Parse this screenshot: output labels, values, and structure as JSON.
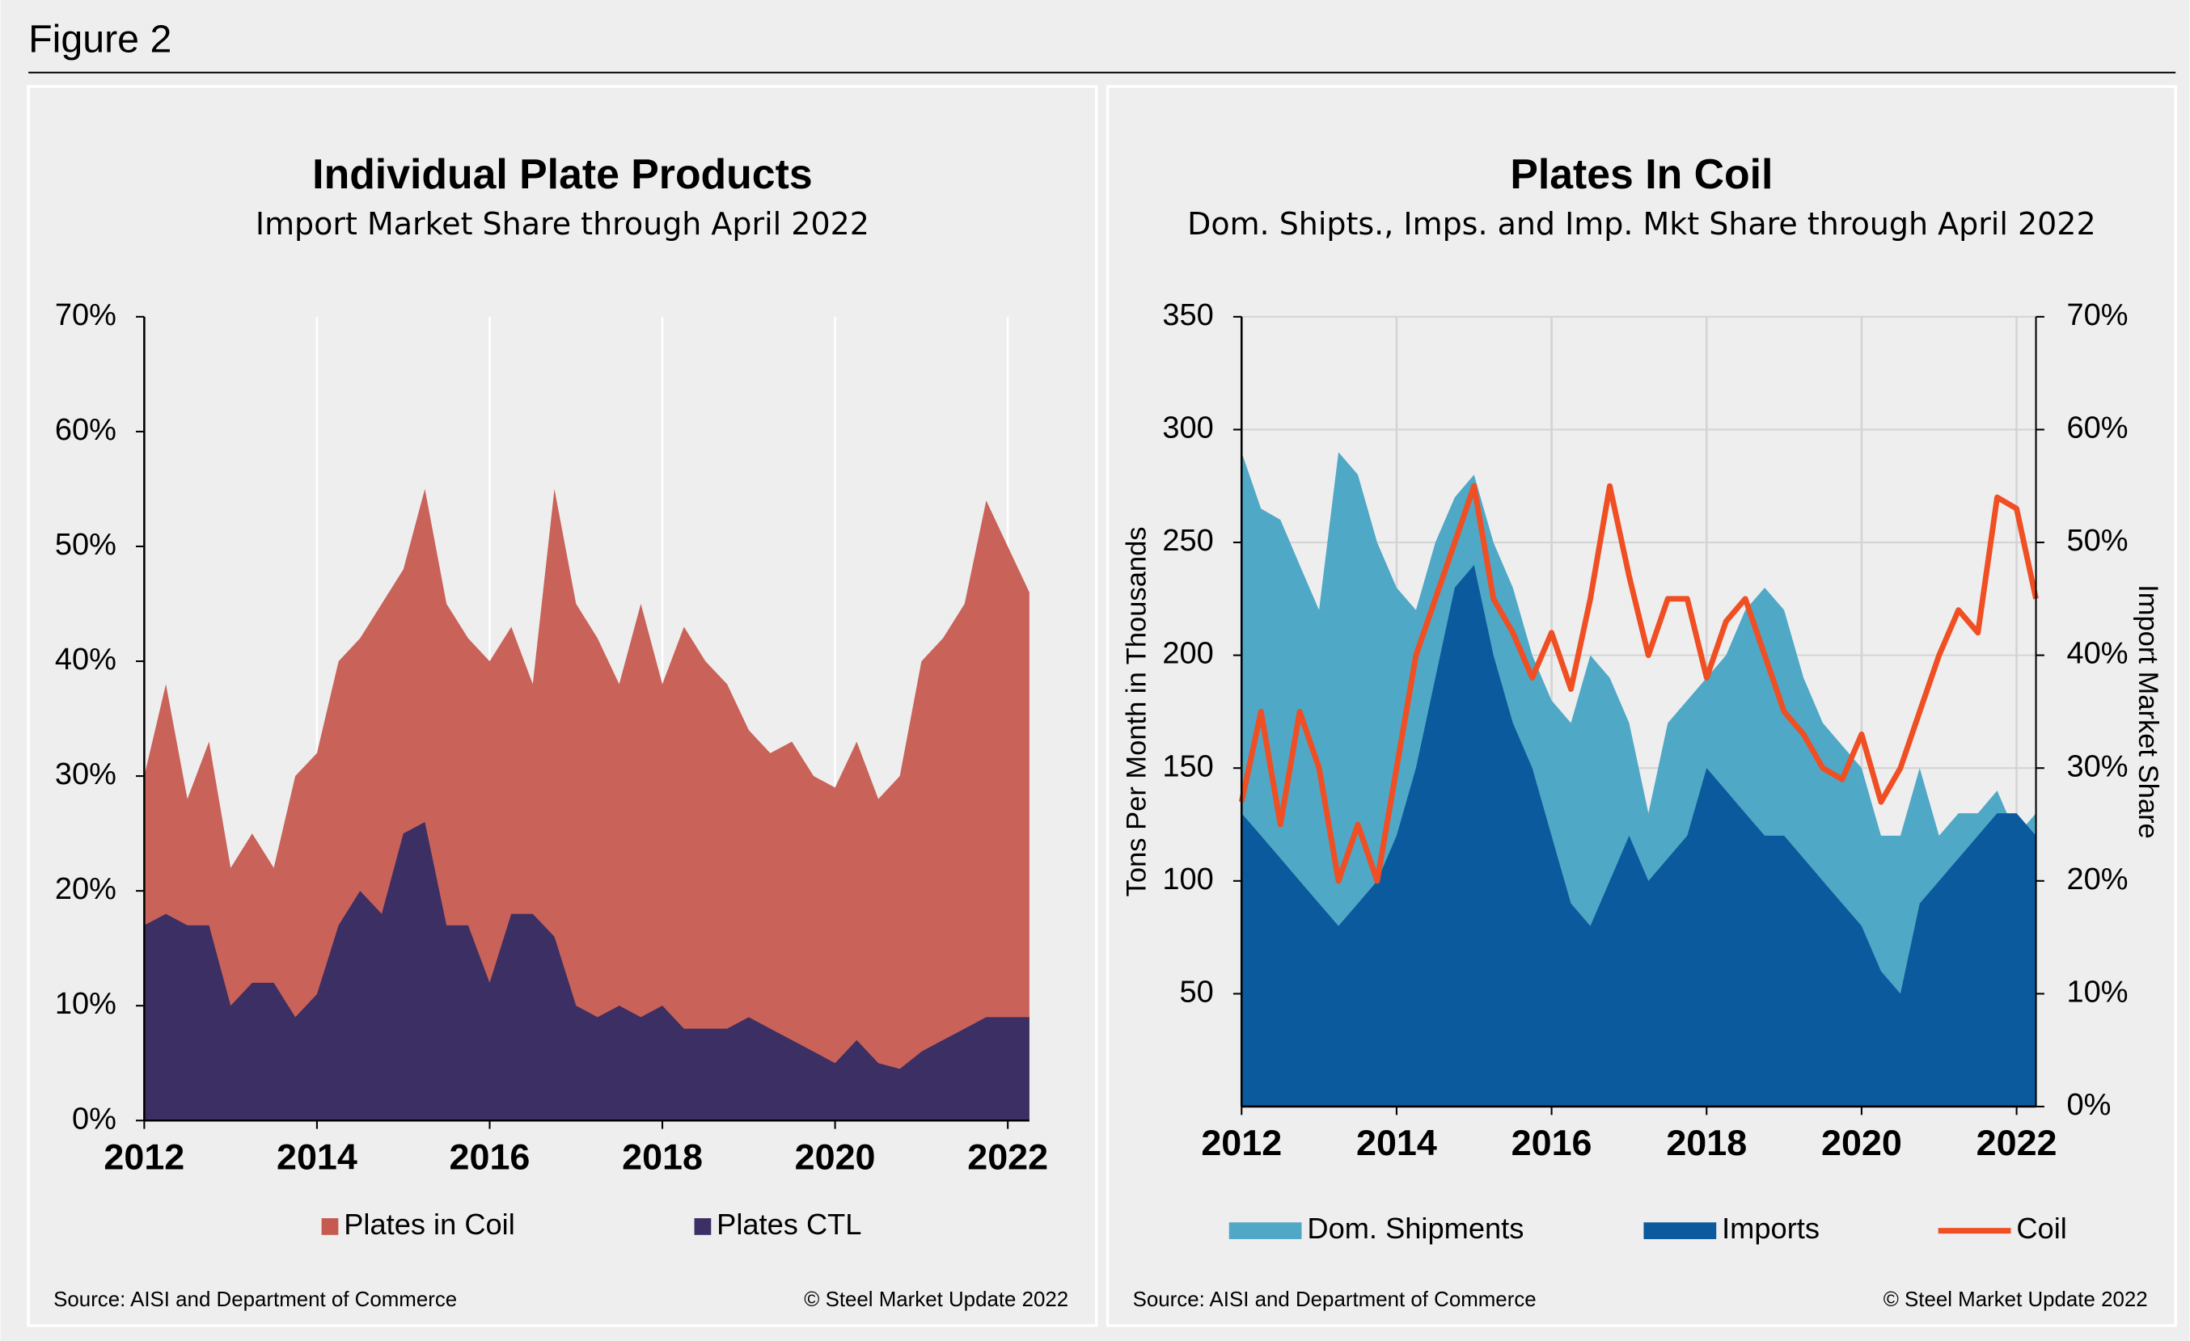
{
  "figure_title": "Figure 2",
  "chart_data": [
    {
      "type": "area",
      "title": "Individual Plate Products",
      "subtitle": "Import Market Share through April 2022",
      "source": "Source: AISI and Department of Commerce",
      "copyright": "© Steel Market Update 2022",
      "x": [
        2012,
        2012.25,
        2012.5,
        2012.75,
        2013,
        2013.25,
        2013.5,
        2013.75,
        2014,
        2014.25,
        2014.5,
        2014.75,
        2015,
        2015.25,
        2015.5,
        2015.75,
        2016,
        2016.25,
        2016.5,
        2016.75,
        2017,
        2017.25,
        2017.5,
        2017.75,
        2018,
        2018.25,
        2018.5,
        2018.75,
        2019,
        2019.25,
        2019.5,
        2019.75,
        2020,
        2020.25,
        2020.5,
        2020.75,
        2021,
        2021.25,
        2021.5,
        2021.75,
        2022,
        2022.25
      ],
      "xlim": [
        2012,
        2022.25
      ],
      "xticks": [
        2012,
        2014,
        2016,
        2018,
        2020,
        2022
      ],
      "ylim": [
        0,
        70
      ],
      "yticks": [
        {
          "value": 0,
          "label": "0%"
        },
        {
          "value": 10,
          "label": "10%"
        },
        {
          "value": 20,
          "label": "20%"
        },
        {
          "value": 30,
          "label": "30%"
        },
        {
          "value": 40,
          "label": "40%"
        },
        {
          "value": 50,
          "label": "50%"
        },
        {
          "value": 60,
          "label": "60%"
        },
        {
          "value": 70,
          "label": "70%"
        }
      ],
      "grid": "vertical",
      "series": [
        {
          "name": "Plates in Coil",
          "color": "#c65a50",
          "values": [
            30,
            38,
            28,
            33,
            22,
            25,
            22,
            30,
            32,
            40,
            42,
            45,
            48,
            55,
            45,
            42,
            40,
            43,
            38,
            55,
            45,
            42,
            38,
            45,
            38,
            43,
            40,
            38,
            34,
            32,
            33,
            30,
            29,
            33,
            28,
            30,
            40,
            42,
            45,
            54,
            50,
            46
          ]
        },
        {
          "name": "Plates CTL",
          "color": "#3b2f63",
          "values": [
            17,
            18,
            17,
            17,
            10,
            12,
            12,
            9,
            11,
            17,
            20,
            18,
            25,
            26,
            17,
            17,
            12,
            18,
            18,
            16,
            10,
            9,
            10,
            9,
            10,
            8,
            8,
            8,
            9,
            8,
            7,
            6,
            5,
            7,
            5,
            4.5,
            6,
            7,
            8,
            9,
            9,
            9
          ]
        }
      ]
    },
    {
      "type": "area",
      "title": "Plates In Coil",
      "subtitle": "Dom. Shipts., Imps. and Imp. Mkt Share through April 2022",
      "source": "Source: AISI and Department of Commerce",
      "copyright": "© Steel Market Update 2022",
      "y_label": "Tons Per Month in Thousands",
      "y2_label": "Import Market Share",
      "x": [
        2012,
        2012.25,
        2012.5,
        2012.75,
        2013,
        2013.25,
        2013.5,
        2013.75,
        2014,
        2014.25,
        2014.5,
        2014.75,
        2015,
        2015.25,
        2015.5,
        2015.75,
        2016,
        2016.25,
        2016.5,
        2016.75,
        2017,
        2017.25,
        2017.5,
        2017.75,
        2018,
        2018.25,
        2018.5,
        2018.75,
        2019,
        2019.25,
        2019.5,
        2019.75,
        2020,
        2020.25,
        2020.5,
        2020.75,
        2021,
        2021.25,
        2021.5,
        2021.75,
        2022,
        2022.25
      ],
      "xlim": [
        2012,
        2022.25
      ],
      "xticks": [
        2012,
        2014,
        2016,
        2018,
        2020,
        2022
      ],
      "ylim": [
        0,
        350
      ],
      "yticks": [
        50,
        100,
        150,
        200,
        250,
        300,
        350
      ],
      "y2lim": [
        0,
        70
      ],
      "y2ticks": [
        {
          "value": 0,
          "label": "0%"
        },
        {
          "value": 10,
          "label": "10%"
        },
        {
          "value": 20,
          "label": "20%"
        },
        {
          "value": 30,
          "label": "30%"
        },
        {
          "value": 40,
          "label": "40%"
        },
        {
          "value": 50,
          "label": "50%"
        },
        {
          "value": 60,
          "label": "60%"
        },
        {
          "value": 70,
          "label": "70%"
        }
      ],
      "grid": "both",
      "series": [
        {
          "name": "Dom. Shipments",
          "color": "#4fa8c6",
          "values": [
            290,
            265,
            260,
            240,
            220,
            290,
            280,
            250,
            230,
            220,
            250,
            270,
            280,
            250,
            230,
            200,
            180,
            170,
            200,
            190,
            170,
            130,
            170,
            180,
            190,
            200,
            220,
            230,
            220,
            190,
            170,
            160,
            150,
            120,
            120,
            150,
            120,
            130,
            130,
            140,
            120,
            130
          ]
        },
        {
          "name": "Imports",
          "color": "#0b5a9e",
          "values": [
            130,
            120,
            110,
            100,
            90,
            80,
            90,
            100,
            120,
            150,
            190,
            230,
            240,
            200,
            170,
            150,
            120,
            90,
            80,
            100,
            120,
            100,
            110,
            120,
            150,
            140,
            130,
            120,
            120,
            110,
            100,
            90,
            80,
            60,
            50,
            90,
            100,
            110,
            120,
            130,
            130,
            120
          ]
        },
        {
          "name": "Coil",
          "color": "#f04e23",
          "type": "line",
          "axis": "y2",
          "values": [
            27,
            35,
            25,
            35,
            30,
            20,
            25,
            20,
            30,
            40,
            45,
            50,
            55,
            45,
            42,
            38,
            42,
            37,
            45,
            55,
            47,
            40,
            45,
            45,
            38,
            43,
            45,
            40,
            35,
            33,
            30,
            29,
            33,
            27,
            30,
            35,
            40,
            44,
            42,
            54,
            53,
            45
          ]
        }
      ]
    }
  ]
}
